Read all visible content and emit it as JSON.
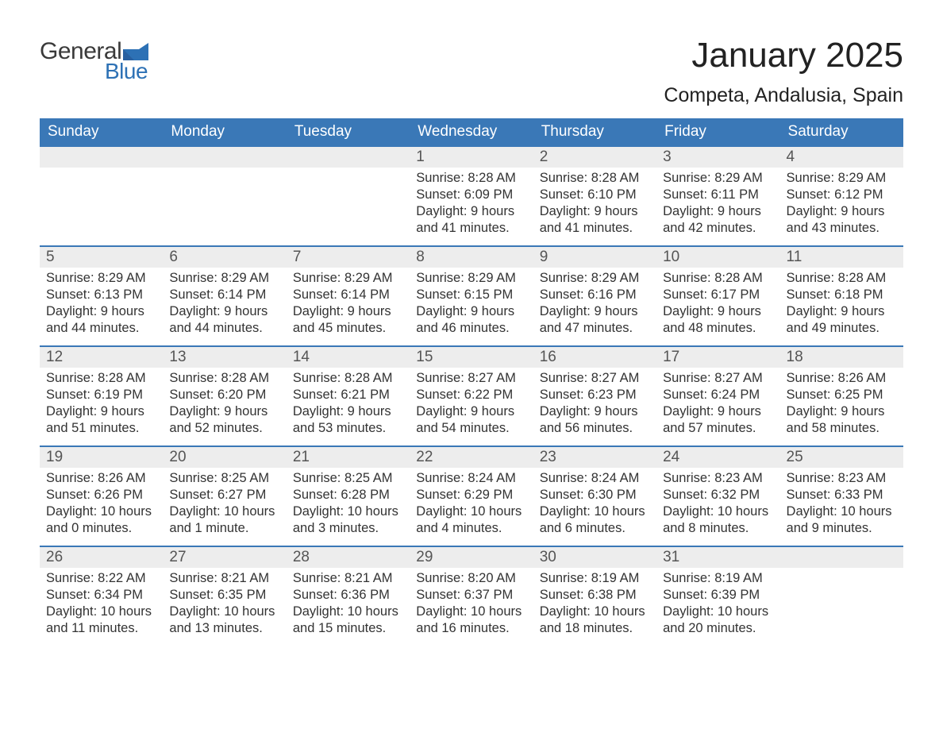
{
  "logo": {
    "general": "General",
    "blue": "Blue"
  },
  "title": {
    "month": "January 2025",
    "location": "Competa, Andalusia, Spain"
  },
  "colors": {
    "header_bg": "#3a78b7",
    "header_text": "#ffffff",
    "row_accent": "#3a78b7",
    "daynum_bg": "#ededed",
    "body_text": "#333333",
    "logo_blue": "#2d71b5"
  },
  "calendar": {
    "type": "table",
    "columns": [
      "Sunday",
      "Monday",
      "Tuesday",
      "Wednesday",
      "Thursday",
      "Friday",
      "Saturday"
    ],
    "weeks": [
      [
        {
          "day": "",
          "lines": []
        },
        {
          "day": "",
          "lines": []
        },
        {
          "day": "",
          "lines": []
        },
        {
          "day": "1",
          "lines": [
            "Sunrise: 8:28 AM",
            "Sunset: 6:09 PM",
            "Daylight: 9 hours",
            "and 41 minutes."
          ]
        },
        {
          "day": "2",
          "lines": [
            "Sunrise: 8:28 AM",
            "Sunset: 6:10 PM",
            "Daylight: 9 hours",
            "and 41 minutes."
          ]
        },
        {
          "day": "3",
          "lines": [
            "Sunrise: 8:29 AM",
            "Sunset: 6:11 PM",
            "Daylight: 9 hours",
            "and 42 minutes."
          ]
        },
        {
          "day": "4",
          "lines": [
            "Sunrise: 8:29 AM",
            "Sunset: 6:12 PM",
            "Daylight: 9 hours",
            "and 43 minutes."
          ]
        }
      ],
      [
        {
          "day": "5",
          "lines": [
            "Sunrise: 8:29 AM",
            "Sunset: 6:13 PM",
            "Daylight: 9 hours",
            "and 44 minutes."
          ]
        },
        {
          "day": "6",
          "lines": [
            "Sunrise: 8:29 AM",
            "Sunset: 6:14 PM",
            "Daylight: 9 hours",
            "and 44 minutes."
          ]
        },
        {
          "day": "7",
          "lines": [
            "Sunrise: 8:29 AM",
            "Sunset: 6:14 PM",
            "Daylight: 9 hours",
            "and 45 minutes."
          ]
        },
        {
          "day": "8",
          "lines": [
            "Sunrise: 8:29 AM",
            "Sunset: 6:15 PM",
            "Daylight: 9 hours",
            "and 46 minutes."
          ]
        },
        {
          "day": "9",
          "lines": [
            "Sunrise: 8:29 AM",
            "Sunset: 6:16 PM",
            "Daylight: 9 hours",
            "and 47 minutes."
          ]
        },
        {
          "day": "10",
          "lines": [
            "Sunrise: 8:28 AM",
            "Sunset: 6:17 PM",
            "Daylight: 9 hours",
            "and 48 minutes."
          ]
        },
        {
          "day": "11",
          "lines": [
            "Sunrise: 8:28 AM",
            "Sunset: 6:18 PM",
            "Daylight: 9 hours",
            "and 49 minutes."
          ]
        }
      ],
      [
        {
          "day": "12",
          "lines": [
            "Sunrise: 8:28 AM",
            "Sunset: 6:19 PM",
            "Daylight: 9 hours",
            "and 51 minutes."
          ]
        },
        {
          "day": "13",
          "lines": [
            "Sunrise: 8:28 AM",
            "Sunset: 6:20 PM",
            "Daylight: 9 hours",
            "and 52 minutes."
          ]
        },
        {
          "day": "14",
          "lines": [
            "Sunrise: 8:28 AM",
            "Sunset: 6:21 PM",
            "Daylight: 9 hours",
            "and 53 minutes."
          ]
        },
        {
          "day": "15",
          "lines": [
            "Sunrise: 8:27 AM",
            "Sunset: 6:22 PM",
            "Daylight: 9 hours",
            "and 54 minutes."
          ]
        },
        {
          "day": "16",
          "lines": [
            "Sunrise: 8:27 AM",
            "Sunset: 6:23 PM",
            "Daylight: 9 hours",
            "and 56 minutes."
          ]
        },
        {
          "day": "17",
          "lines": [
            "Sunrise: 8:27 AM",
            "Sunset: 6:24 PM",
            "Daylight: 9 hours",
            "and 57 minutes."
          ]
        },
        {
          "day": "18",
          "lines": [
            "Sunrise: 8:26 AM",
            "Sunset: 6:25 PM",
            "Daylight: 9 hours",
            "and 58 minutes."
          ]
        }
      ],
      [
        {
          "day": "19",
          "lines": [
            "Sunrise: 8:26 AM",
            "Sunset: 6:26 PM",
            "Daylight: 10 hours",
            "and 0 minutes."
          ]
        },
        {
          "day": "20",
          "lines": [
            "Sunrise: 8:25 AM",
            "Sunset: 6:27 PM",
            "Daylight: 10 hours",
            "and 1 minute."
          ]
        },
        {
          "day": "21",
          "lines": [
            "Sunrise: 8:25 AM",
            "Sunset: 6:28 PM",
            "Daylight: 10 hours",
            "and 3 minutes."
          ]
        },
        {
          "day": "22",
          "lines": [
            "Sunrise: 8:24 AM",
            "Sunset: 6:29 PM",
            "Daylight: 10 hours",
            "and 4 minutes."
          ]
        },
        {
          "day": "23",
          "lines": [
            "Sunrise: 8:24 AM",
            "Sunset: 6:30 PM",
            "Daylight: 10 hours",
            "and 6 minutes."
          ]
        },
        {
          "day": "24",
          "lines": [
            "Sunrise: 8:23 AM",
            "Sunset: 6:32 PM",
            "Daylight: 10 hours",
            "and 8 minutes."
          ]
        },
        {
          "day": "25",
          "lines": [
            "Sunrise: 8:23 AM",
            "Sunset: 6:33 PM",
            "Daylight: 10 hours",
            "and 9 minutes."
          ]
        }
      ],
      [
        {
          "day": "26",
          "lines": [
            "Sunrise: 8:22 AM",
            "Sunset: 6:34 PM",
            "Daylight: 10 hours",
            "and 11 minutes."
          ]
        },
        {
          "day": "27",
          "lines": [
            "Sunrise: 8:21 AM",
            "Sunset: 6:35 PM",
            "Daylight: 10 hours",
            "and 13 minutes."
          ]
        },
        {
          "day": "28",
          "lines": [
            "Sunrise: 8:21 AM",
            "Sunset: 6:36 PM",
            "Daylight: 10 hours",
            "and 15 minutes."
          ]
        },
        {
          "day": "29",
          "lines": [
            "Sunrise: 8:20 AM",
            "Sunset: 6:37 PM",
            "Daylight: 10 hours",
            "and 16 minutes."
          ]
        },
        {
          "day": "30",
          "lines": [
            "Sunrise: 8:19 AM",
            "Sunset: 6:38 PM",
            "Daylight: 10 hours",
            "and 18 minutes."
          ]
        },
        {
          "day": "31",
          "lines": [
            "Sunrise: 8:19 AM",
            "Sunset: 6:39 PM",
            "Daylight: 10 hours",
            "and 20 minutes."
          ]
        },
        {
          "day": "",
          "lines": []
        }
      ]
    ]
  }
}
